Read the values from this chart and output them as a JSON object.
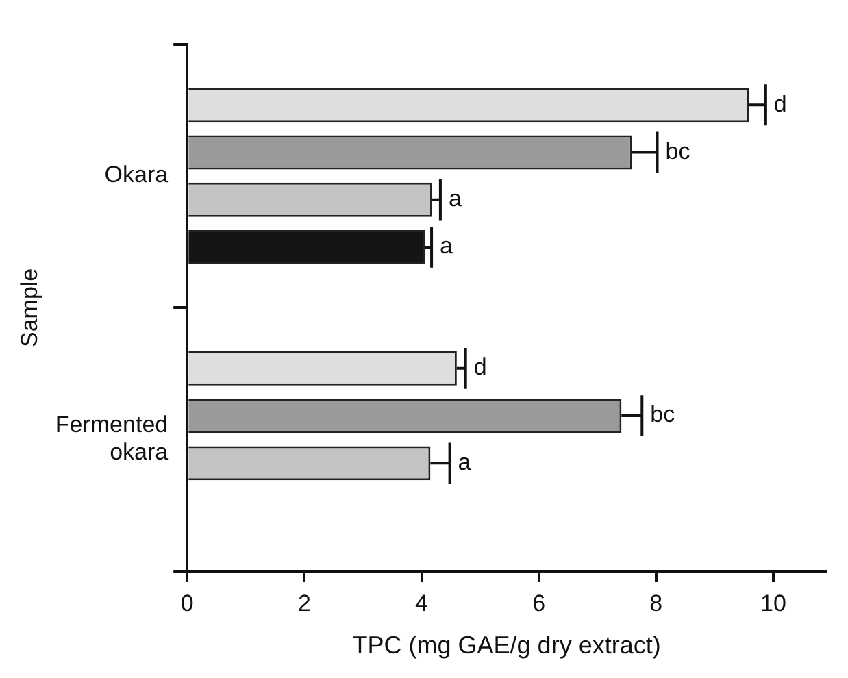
{
  "chart_data": {
    "type": "bar",
    "orientation": "horizontal",
    "xlabel": "TPC (mg GAE/g dry extract)",
    "ylabel": "Sample",
    "categories": [
      "Okara",
      "Fermented okara"
    ],
    "series": [
      {
        "color": "#dedede",
        "values": [
          9.59,
          4.6
        ],
        "errors": [
          [
            9.59,
            9.87
          ],
          [
            4.6,
            4.75
          ]
        ],
        "value_labels": [
          "d",
          "d"
        ]
      },
      {
        "color": "#9a9a9a",
        "values": [
          7.59,
          7.41
        ],
        "errors": [
          [
            7.59,
            8.02
          ],
          [
            7.41,
            7.76
          ]
        ],
        "value_labels": [
          "bc",
          "bc"
        ]
      },
      {
        "color": "#c4c4c4",
        "values": [
          4.18,
          4.15
        ],
        "errors": [
          [
            4.18,
            4.32
          ],
          [
            4.15,
            4.48
          ]
        ],
        "value_labels": [
          "a",
          "a"
        ]
      },
      {
        "color": "#151515",
        "values": [
          4.06,
          null
        ],
        "errors": [
          [
            4.06,
            4.17
          ],
          null
        ],
        "value_labels": [
          "a",
          null
        ]
      }
    ],
    "xlim": [
      0,
      10.9
    ],
    "xticks": [
      0,
      2,
      4,
      6,
      8,
      10
    ],
    "grid": false,
    "legend": false
  }
}
